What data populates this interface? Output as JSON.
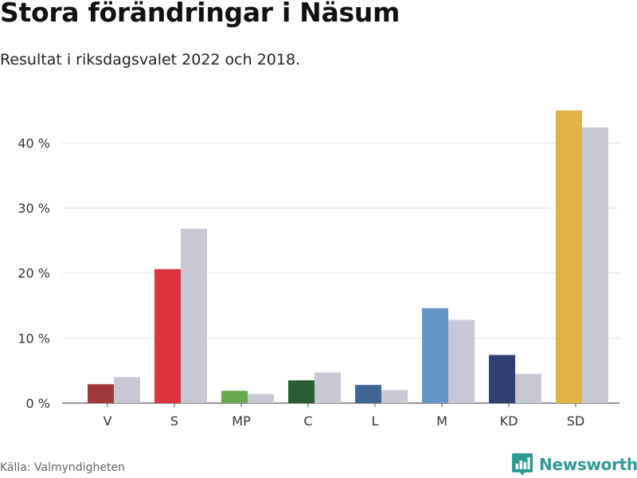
{
  "chart_data": {
    "type": "bar",
    "title": "Stora förändringar i Näsum",
    "subtitle": "Resultat i riksdagsvalet 2022 och 2018.",
    "categories": [
      "V",
      "S",
      "MP",
      "C",
      "L",
      "M",
      "KD",
      "SD"
    ],
    "series": [
      {
        "values": [
          2.9,
          20.6,
          1.9,
          3.5,
          2.8,
          14.6,
          7.4,
          45.0
        ],
        "colors": [
          "#a0393a",
          "#dc3540",
          "#6aa84f",
          "#275e32",
          "#3f6694",
          "#6497c5",
          "#2f3e73",
          "#dfb443"
        ]
      },
      {
        "values": [
          4.0,
          26.8,
          1.4,
          4.7,
          2.0,
          12.8,
          4.5,
          42.4
        ],
        "color": "#c8c8d5"
      }
    ],
    "yticks": [
      {
        "value": 0,
        "label": "0 %"
      },
      {
        "value": 10,
        "label": "10 %"
      },
      {
        "value": 20,
        "label": "20 %"
      },
      {
        "value": 30,
        "label": "30 %"
      },
      {
        "value": 40,
        "label": "40 %"
      }
    ],
    "ylim": [
      0,
      49
    ],
    "grid": true,
    "gridColor": "#e0e0e0",
    "xlabel": "",
    "ylabel": ""
  },
  "source": "Källa: Valmyndigheten",
  "brand": {
    "name": "Newsworthy",
    "icon": "newsworthy-logo-icon",
    "color": "#2e9a96"
  }
}
